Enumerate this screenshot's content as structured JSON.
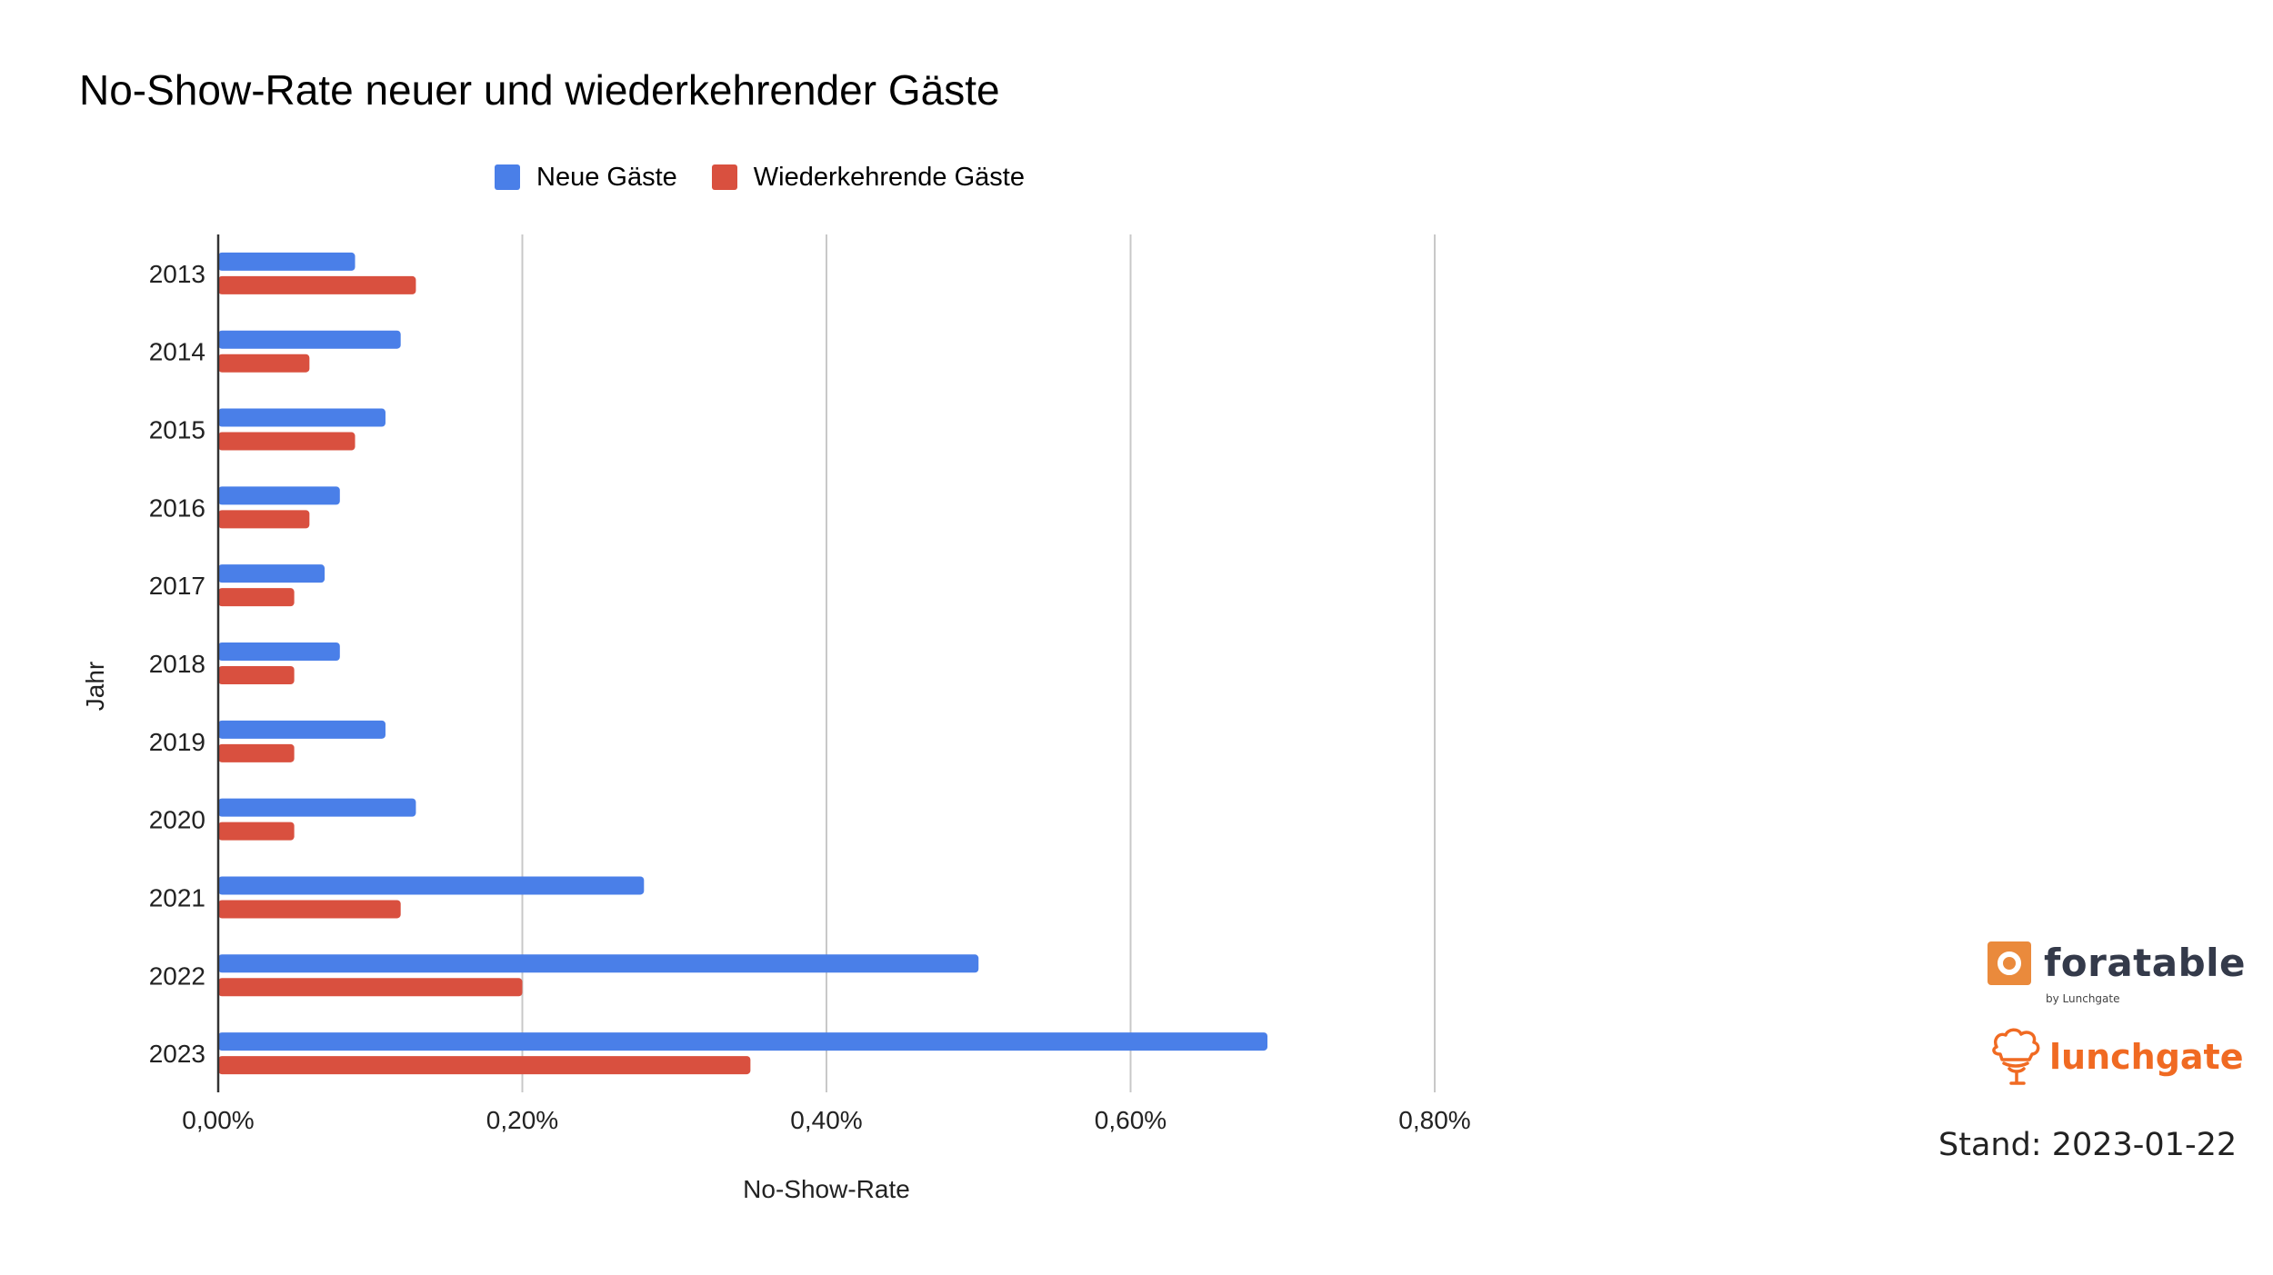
{
  "chart_data": {
    "type": "bar",
    "orientation": "horizontal",
    "title": "No-Show-Rate neuer und wiederkehrender Gäste",
    "xlabel": "No-Show-Rate",
    "ylabel": "Jahr",
    "categories": [
      "2013",
      "2014",
      "2015",
      "2016",
      "2017",
      "2018",
      "2019",
      "2020",
      "2021",
      "2022",
      "2023"
    ],
    "series": [
      {
        "name": "Neue Gäste",
        "color": "#4a7fe8",
        "values": [
          0.09,
          0.12,
          0.11,
          0.08,
          0.07,
          0.08,
          0.11,
          0.13,
          0.28,
          0.5,
          0.69
        ]
      },
      {
        "name": "Wiederkehrende Gäste",
        "color": "#d9503f",
        "values": [
          0.13,
          0.06,
          0.09,
          0.06,
          0.05,
          0.05,
          0.05,
          0.05,
          0.12,
          0.2,
          0.35
        ]
      }
    ],
    "xlim": [
      0,
      0.8
    ],
    "xticks": [
      0,
      0.2,
      0.4,
      0.6,
      0.8
    ],
    "xtick_labels": [
      "0,00%",
      "0,20%",
      "0,40%",
      "0,60%",
      "0,80%"
    ],
    "unit": "%",
    "grid": true,
    "legend_position": "top"
  },
  "branding": {
    "foratable": "foratable",
    "foratable_sub": "by Lunchgate",
    "lunchgate": "lunchgate",
    "stand": "Stand: 2023-01-22"
  }
}
